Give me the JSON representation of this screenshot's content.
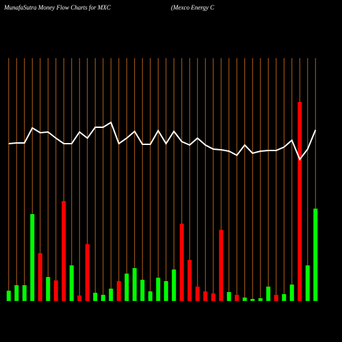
{
  "chart_data": {
    "type": "bar",
    "title": "MunafaSutra  Money Flow  Charts for MXC",
    "subtitle": "(Mexco  Energy C",
    "categories": [
      null,
      null,
      null,
      null,
      null,
      null,
      null,
      null,
      null,
      null,
      null,
      null,
      null,
      null,
      null,
      null,
      null,
      null,
      null,
      null,
      null,
      null,
      null,
      null,
      null,
      null,
      null,
      null,
      null,
      null,
      null,
      null,
      null,
      null,
      null,
      null,
      null,
      null,
      null,
      null
    ],
    "series": [
      {
        "color": [
          "#00ff00",
          "#00ff00",
          "#00ff00",
          "#00ff00",
          "#ff0000",
          "#00ff00",
          "#ff0000",
          "#ff0000",
          "#00ff00",
          "#ff0000",
          "#ff0000",
          "#00ff00",
          "#00ff00",
          "#00ff00",
          "#ff0000",
          "#00ff00",
          "#00ff00",
          "#00ff00",
          "#00ff00",
          "#00ff00",
          "#00ff00",
          "#00ff00",
          "#ff0000",
          "#ff0000",
          "#ff0000",
          "#ff0000",
          "#ff0000",
          "#ff0000",
          "#00ff00",
          "#ff0000",
          "#00ff00",
          "#00ff00",
          "#00ff00",
          "#00ff00",
          "#ff0000",
          "#00ff00",
          "#00ff00",
          "#ff0000",
          "#00ff00",
          "#00ff00"
        ],
        "values": [
          15,
          23,
          23,
          127,
          70,
          35,
          30,
          146,
          52,
          8,
          83,
          12,
          9,
          18,
          29,
          40,
          48,
          31,
          14,
          34,
          29,
          46,
          113,
          60,
          21,
          14,
          11,
          104,
          13,
          9,
          5,
          3,
          4,
          21,
          9,
          10,
          24,
          291,
          52,
          135
        ]
      },
      {
        "type": "line",
        "color": "#ffffff",
        "values": [
          230,
          231,
          231,
          253,
          246,
          247,
          238,
          230,
          230,
          247,
          238,
          254,
          254,
          261,
          230,
          238,
          248,
          229,
          229,
          249,
          230,
          248,
          233,
          228,
          238,
          228,
          222,
          221,
          219,
          213,
          228,
          216,
          219,
          220,
          220,
          225,
          235,
          207,
          222,
          250
        ]
      }
    ],
    "ylim": [
      0,
      300
    ],
    "grid": true,
    "grid_color": "#b8621b"
  }
}
